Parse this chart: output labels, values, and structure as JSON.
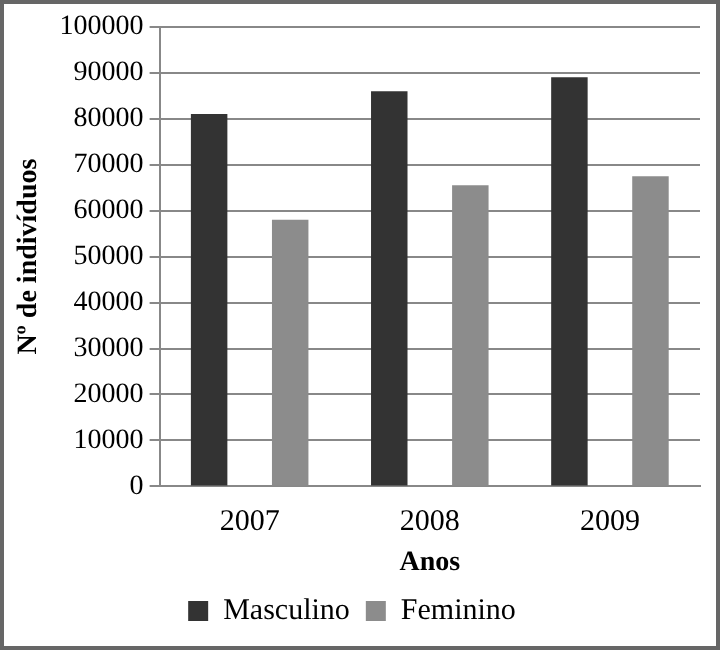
{
  "chart_data": {
    "type": "bar",
    "xlabel": "Anos",
    "ylabel": "Nº de indivíduos",
    "categories": [
      "2007",
      "2008",
      "2009"
    ],
    "series": [
      {
        "name": "Masculino",
        "color": "#333333",
        "values": [
          81000,
          86000,
          89000
        ]
      },
      {
        "name": "Feminino",
        "color": "#8c8c8c",
        "values": [
          58000,
          65500,
          67500
        ]
      }
    ],
    "ylim": [
      0,
      100000
    ],
    "yticks": [
      0,
      10000,
      20000,
      30000,
      40000,
      50000,
      60000,
      70000,
      80000,
      90000,
      100000
    ],
    "grid": "y",
    "legend": "bottom"
  }
}
